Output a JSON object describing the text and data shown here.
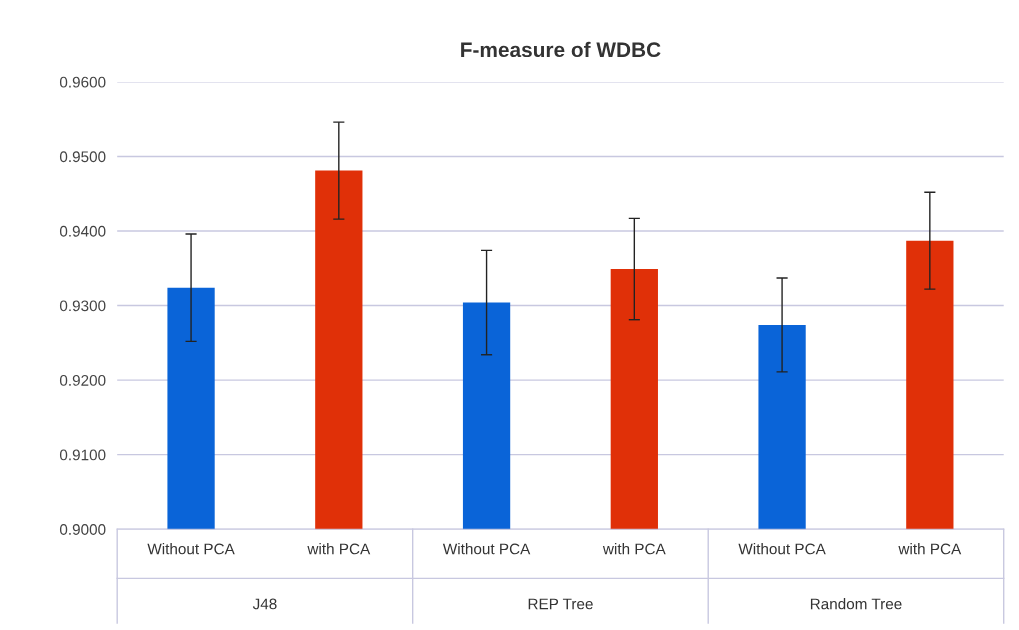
{
  "chart_data": {
    "type": "bar",
    "title": "F-measure of WDBC",
    "categories": [
      "Without PCA",
      "with PCA",
      "Without PCA",
      "with PCA",
      "Without PCA",
      "with PCA"
    ],
    "values": [
      0.9324,
      0.9481,
      0.9304,
      0.9349,
      0.9274,
      0.9387
    ],
    "errors": [
      0.0072,
      0.0065,
      0.007,
      0.0068,
      0.0063,
      0.0065
    ],
    "colors": [
      "#0a64d8",
      "#e03008",
      "#0a64d8",
      "#e03008",
      "#0a64d8",
      "#e03008"
    ],
    "annotations": [
      "J48",
      "REP Tree",
      "Random Tree"
    ],
    "ylim": [
      0.9,
      0.96
    ],
    "yticks": [
      {
        "value": 0.9,
        "label": "0.9000"
      },
      {
        "value": 0.91,
        "label": "0.9100"
      },
      {
        "value": 0.92,
        "label": "0.9200"
      },
      {
        "value": 0.93,
        "label": "0.9300"
      },
      {
        "value": 0.94,
        "label": "0.9400"
      },
      {
        "value": 0.95,
        "label": "0.9500"
      },
      {
        "value": 0.96,
        "label": "0.9600"
      }
    ],
    "grid": "y"
  }
}
